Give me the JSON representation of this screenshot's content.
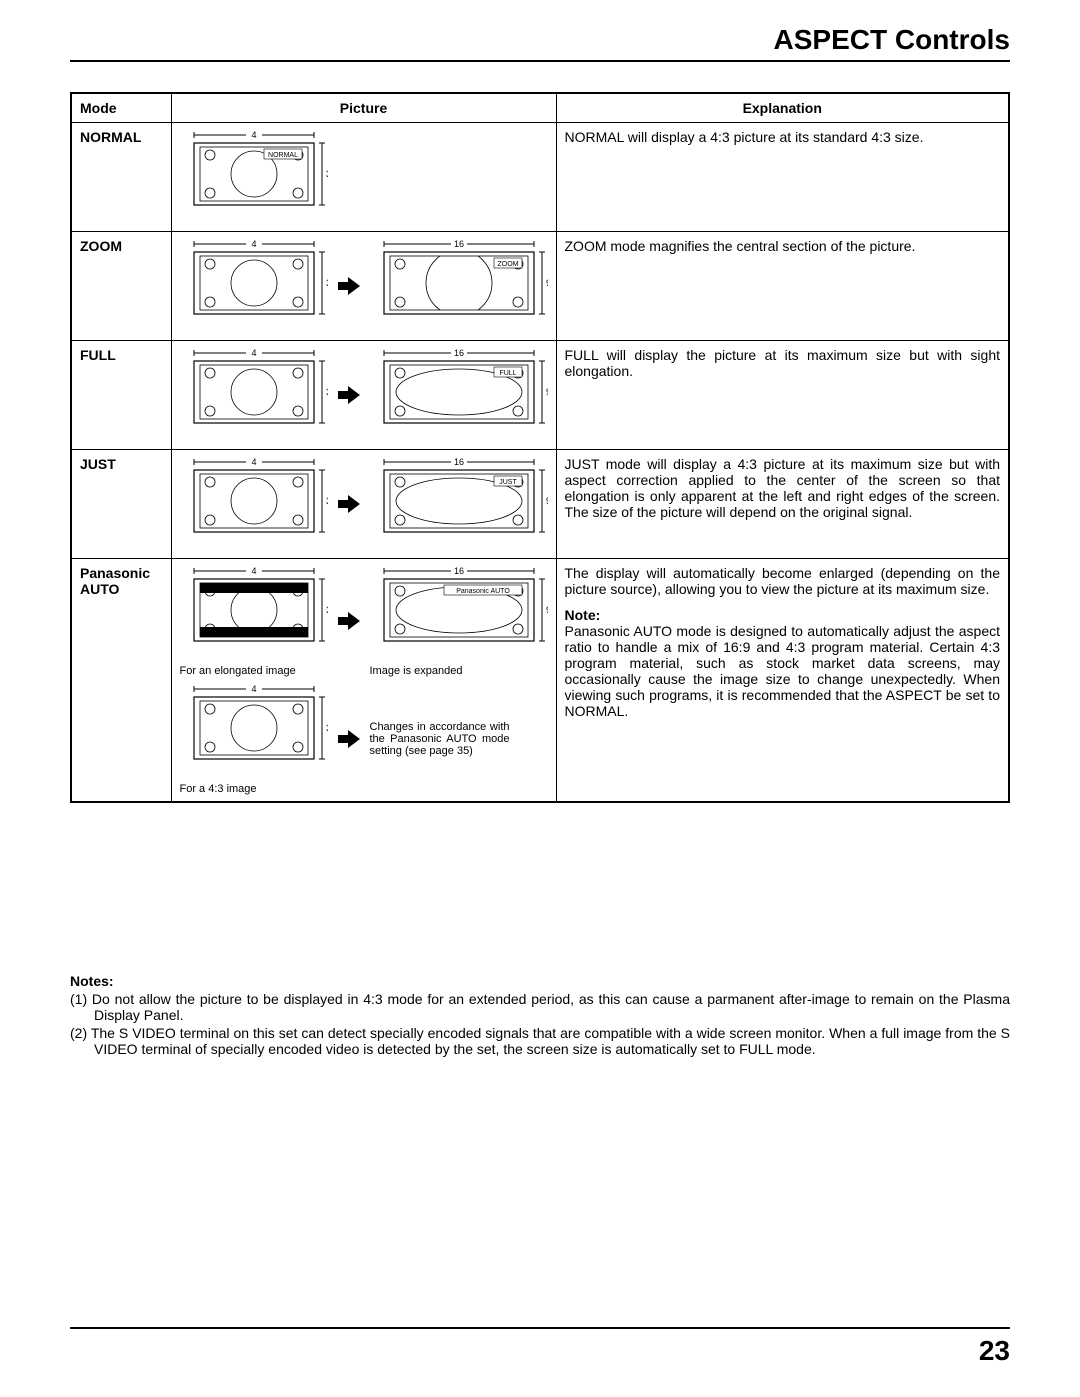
{
  "page": {
    "title": "ASPECT Controls",
    "number": "23"
  },
  "table": {
    "headers": {
      "mode": "Mode",
      "picture": "Picture",
      "explanation": "Explanation"
    },
    "rows": [
      {
        "mode": "NORMAL",
        "explanation": "NORMAL will display a 4:3 picture at its standard 4:3 size.",
        "pic": {
          "left": {
            "w": "4",
            "h": "3",
            "label": "NORMAL"
          }
        }
      },
      {
        "mode": "ZOOM",
        "explanation": "ZOOM mode magnifies the central section of the picture.",
        "pic": {
          "left": {
            "w": "4",
            "h": "3"
          },
          "right": {
            "w": "16",
            "h": "9",
            "label": "ZOOM"
          }
        }
      },
      {
        "mode": "FULL",
        "explanation": "FULL will display the picture at its maximum size but with sight elongation.",
        "pic": {
          "left": {
            "w": "4",
            "h": "3"
          },
          "right": {
            "w": "16",
            "h": "9",
            "label": "FULL"
          }
        }
      },
      {
        "mode": "JUST",
        "explanation": "JUST mode will display a 4:3 picture at its maximum size but with aspect correction applied to the center of the screen so that elongation is only apparent at the left and right edges of the screen. The size of the picture will depend on the original signal.",
        "pic": {
          "left": {
            "w": "4",
            "h": "3"
          },
          "right": {
            "w": "16",
            "h": "9",
            "label": "JUST"
          }
        }
      },
      {
        "mode": "Panasonic AUTO",
        "explanation": "The display will automatically become enlarged (depending on the picture source), allowing you to view the picture at its maximum size.",
        "note_label": "Note:",
        "note": "Panasonic AUTO mode is designed to automatically adjust the aspect ratio to handle a mix of 16:9 and 4:3 program material. Certain 4:3 program material, such as stock market data screens, may occasionally cause the image size to change unexpectedly. When viewing such programs, it is recommended that the ASPECT be set to NORMAL.",
        "pic": {
          "topLeft": {
            "w": "4",
            "h": "3",
            "caption": "For an elongated image",
            "letterbox": true
          },
          "topRight": {
            "w": "16",
            "h": "9",
            "label": "Panasonic AUTO",
            "caption": "Image is expanded"
          },
          "botLeft": {
            "w": "4",
            "h": "3",
            "caption": "For a 4:3 image"
          },
          "botRightText": "Changes in accordance with the Panasonic AUTO mode setting (see page 35)"
        }
      }
    ]
  },
  "notes": {
    "heading": "Notes:",
    "items": [
      "(1) Do not allow the picture to be displayed in 4:3 mode for an extended period, as this can cause a parmanent after-image to remain on the Plasma Display Panel.",
      "(2) The S VIDEO terminal on this set can detect specially encoded signals that are compatible with a wide screen monitor. When a full image from the S VIDEO terminal of specially encoded video is detected by the set, the screen size is automatically set to FULL mode."
    ]
  },
  "style": {
    "stroke": "#000000",
    "fill": "#ffffff",
    "black": "#000000",
    "font_small": 8,
    "font_dim": 9
  }
}
